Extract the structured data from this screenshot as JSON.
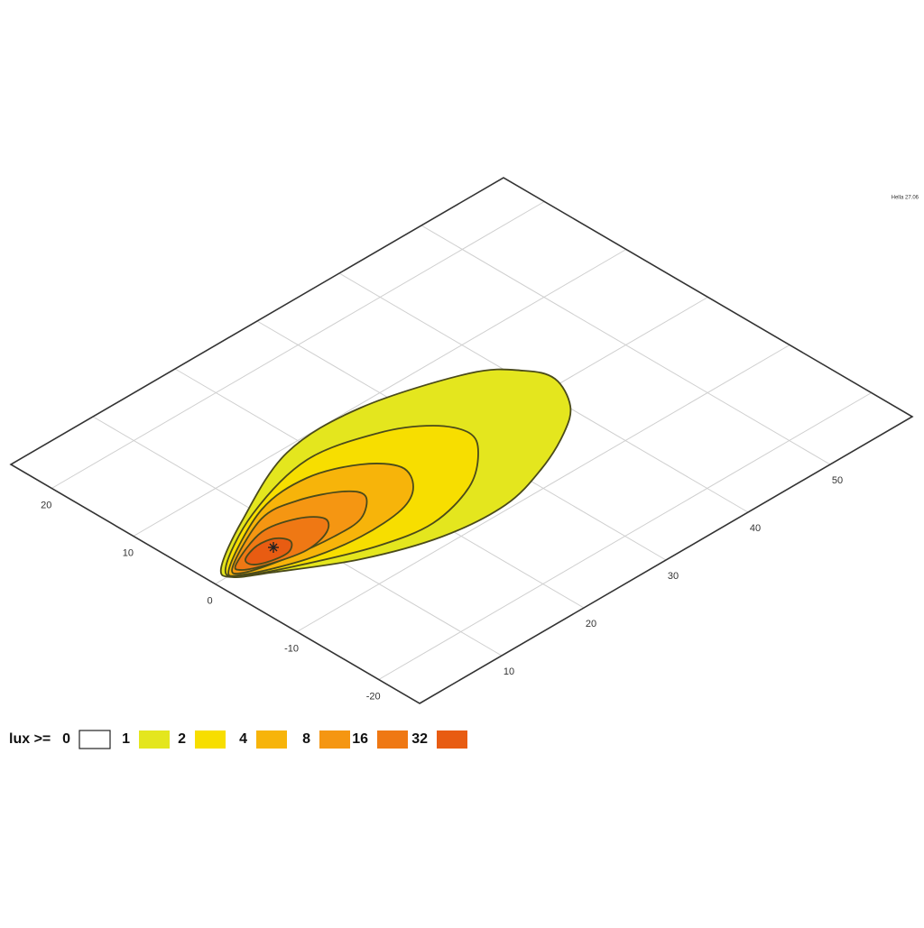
{
  "chart_data": {
    "type": "isolux",
    "note": "Hella 27.06",
    "legend_title": "lux >=",
    "levels": [
      0,
      1,
      2,
      4,
      8,
      16,
      32
    ],
    "colors": [
      "#ffffff",
      "#e4e61e",
      "#f7de00",
      "#f7b40a",
      "#f59612",
      "#ef7814",
      "#e85c12"
    ],
    "xlim": [
      0,
      60
    ],
    "xticks": [
      10,
      20,
      30,
      40,
      50
    ],
    "ylim": [
      -25,
      25
    ],
    "yticks": [
      -20,
      -10,
      0,
      10,
      20
    ],
    "grid": true
  }
}
